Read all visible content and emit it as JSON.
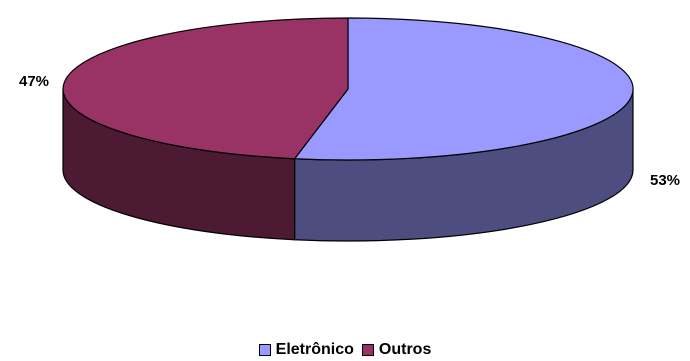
{
  "chart_data": {
    "type": "pie",
    "style": "3d",
    "categories": [
      "Eletrônico",
      "Outros"
    ],
    "values": [
      53,
      47
    ],
    "labels": [
      "53%",
      "47%"
    ],
    "colors": {
      "Eletrônico": {
        "top": "#9999ff",
        "side": "#4d4d80"
      },
      "Outros": {
        "top": "#993366",
        "side": "#4d1a33"
      }
    },
    "legend_position": "bottom"
  },
  "legend": {
    "items": [
      {
        "label": "Eletrônico",
        "color": "#9999ff"
      },
      {
        "label": "Outros",
        "color": "#993366"
      }
    ]
  }
}
